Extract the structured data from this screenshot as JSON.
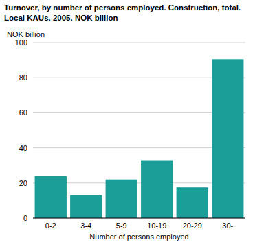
{
  "chart_data": {
    "type": "bar",
    "title": "Turnover, by number of persons employed. Construction, total. Local KAUs. 2005. NOK billion",
    "y_label": "NOK billion",
    "x_label": "Number of persons employed",
    "categories": [
      "0-2",
      "3-4",
      "5-9",
      "10-19",
      "20-29",
      "30-"
    ],
    "values": [
      24,
      13,
      22,
      33,
      17.5,
      90.5
    ],
    "color": "#1b9e97",
    "ylim": [
      0,
      100
    ],
    "yticks": [
      0,
      20,
      40,
      60,
      80,
      100
    ],
    "grid": true
  }
}
